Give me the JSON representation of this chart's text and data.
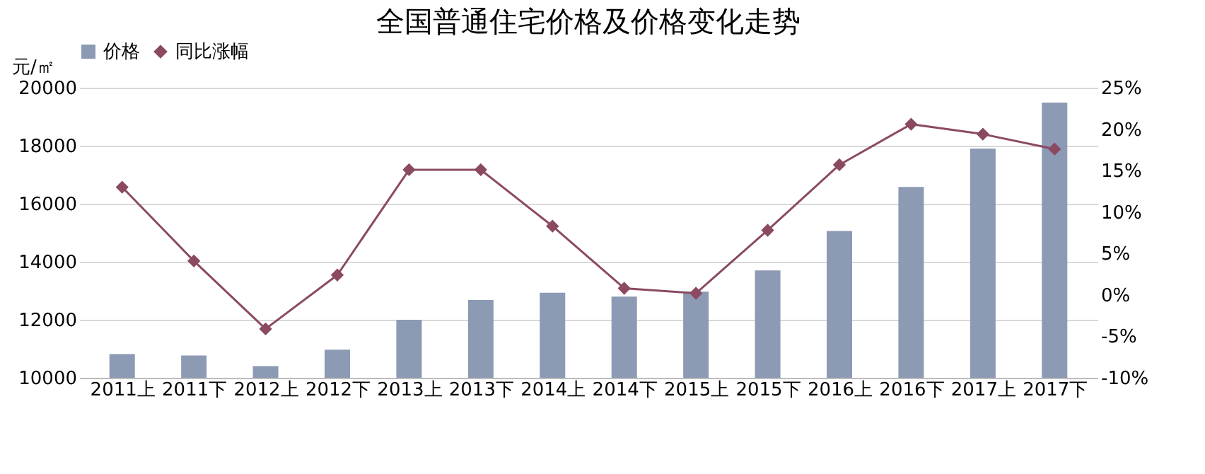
{
  "chart_data": {
    "type": "bar",
    "title": "全国普通住宅价格及价格变化走势",
    "categories": [
      "2011上",
      "2011下",
      "2012上",
      "2012下",
      "2013上",
      "2013下",
      "2014上",
      "2014下",
      "2015上",
      "2015下",
      "2016上",
      "2016下",
      "2017上",
      "2017下"
    ],
    "series": [
      {
        "name": "价格",
        "color": "#8c9ab4",
        "values": [
          10820,
          10770,
          10400,
          10970,
          12000,
          12680,
          12930,
          12800,
          12970,
          13700,
          15060,
          16580,
          17900,
          19490
        ]
      },
      {
        "name": "同比涨幅",
        "type": "line",
        "axis": "y2",
        "color": "#8b4a62",
        "marker": "diamond",
        "values": [
          13.0,
          4.1,
          -4.1,
          2.4,
          15.1,
          15.1,
          8.3,
          0.8,
          0.2,
          7.8,
          15.7,
          20.6,
          19.4,
          17.6
        ]
      }
    ],
    "ylabel": "元/㎡",
    "ylim": [
      10000,
      20000
    ],
    "yticks": [
      10000,
      12000,
      14000,
      16000,
      18000,
      20000
    ],
    "y2lim": [
      -10,
      25
    ],
    "y2ticks": [
      {
        "value": -10,
        "label": "-10%"
      },
      {
        "value": -5,
        "label": "-5%"
      },
      {
        "value": 0,
        "label": "0%"
      },
      {
        "value": 5,
        "label": "5%"
      },
      {
        "value": 10,
        "label": "10%"
      },
      {
        "value": 15,
        "label": "15%"
      },
      {
        "value": 20,
        "label": "20%"
      },
      {
        "value": 25,
        "label": "25%"
      }
    ],
    "grid": "y",
    "legend": "top"
  }
}
